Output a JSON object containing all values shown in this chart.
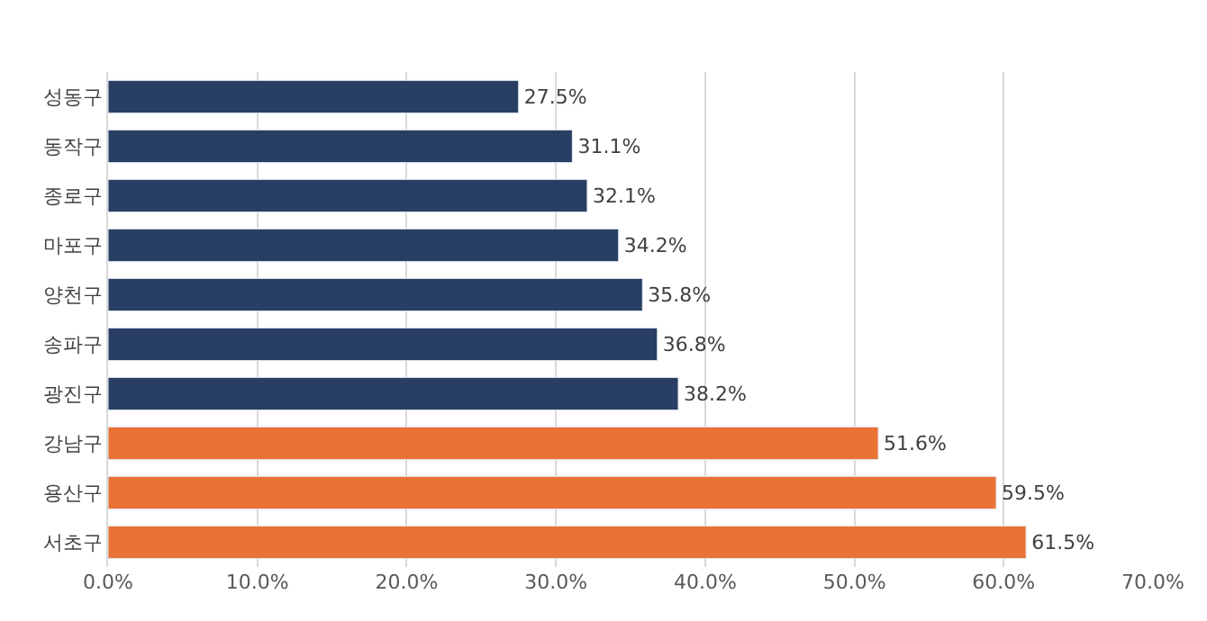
{
  "chart_data": {
    "type": "bar",
    "orientation": "horizontal",
    "categories": [
      "성동구",
      "동작구",
      "종로구",
      "마포구",
      "양천구",
      "송파구",
      "광진구",
      "강남구",
      "용산구",
      "서초구"
    ],
    "values": [
      27.5,
      31.1,
      32.1,
      34.2,
      35.8,
      36.8,
      38.2,
      51.6,
      59.5,
      61.5
    ],
    "colors": [
      "#283f63",
      "#283f63",
      "#283f63",
      "#283f63",
      "#283f63",
      "#283f63",
      "#283f63",
      "#e97235",
      "#e97235",
      "#e97235"
    ],
    "value_labels": [
      "27.5%",
      "31.1%",
      "32.1%",
      "34.2%",
      "35.8%",
      "36.8%",
      "38.2%",
      "51.6%",
      "59.5%",
      "61.5%"
    ],
    "xlim": [
      0,
      70
    ],
    "xticks": [
      {
        "value": 0,
        "label": "0.0%"
      },
      {
        "value": 10,
        "label": "10.0%"
      },
      {
        "value": 20,
        "label": "20.0%"
      },
      {
        "value": 30,
        "label": "30.0%"
      },
      {
        "value": 40,
        "label": "40.0%"
      },
      {
        "value": 50,
        "label": "50.0%"
      },
      {
        "value": 60,
        "label": "60.0%"
      },
      {
        "value": 70,
        "label": "70.0%"
      }
    ],
    "grid": "x",
    "legend": false
  }
}
